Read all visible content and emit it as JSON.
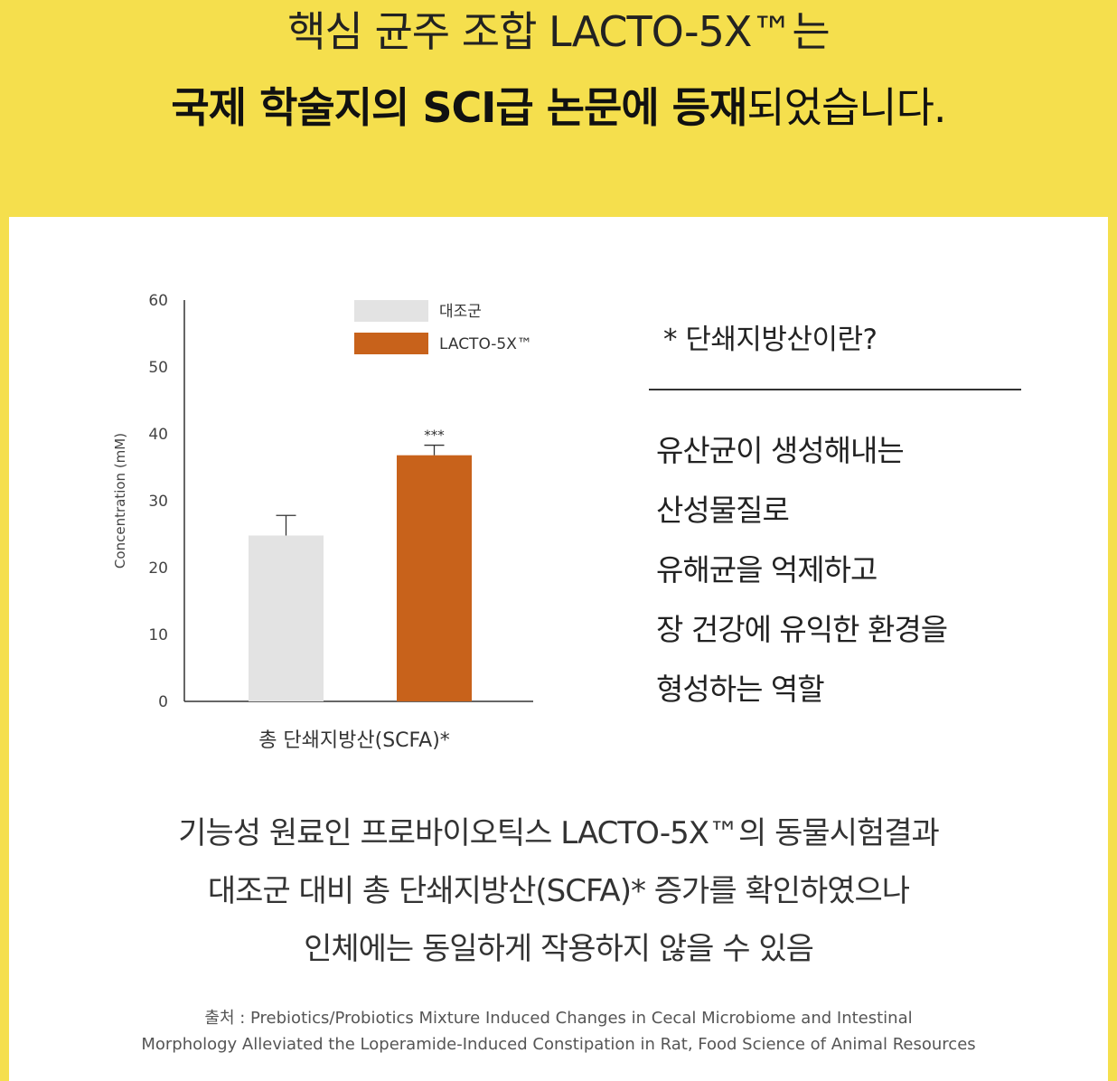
{
  "hero": {
    "line1": "핵심 균주 조합 LACTO-5X™는",
    "line2_bold": "국제 학술지의 SCI급 논문에 등재",
    "line2_rest": "되었습니다."
  },
  "definition": {
    "title": "* 단쇄지방산이란?",
    "lines": [
      "유산균이 생성해내는",
      "산성물질로",
      "유해균을 억제하고",
      "장 건강에 유익한 환경을",
      "형성하는 역할"
    ]
  },
  "notes": [
    "기능성 원료인 프로바이오틱스 LACTO-5X™의 동물시험결과",
    "대조군 대비 총 단쇄지방산(SCFA)* 증가를 확인하였으나",
    "인체에는 동일하게 작용하지 않을 수 있음"
  ],
  "source": {
    "line1": "출처 : Prebiotics/Probiotics Mixture Induced Changes in Cecal Microbiome and Intestinal",
    "line2": "Morphology Alleviated the Loperamide-Induced Constipation in Rat, Food Science of Animal Resources"
  },
  "chart_data": {
    "type": "bar",
    "ylabel": "Concentration (mM)",
    "xlabel": "총 단쇄지방산(SCFA)*",
    "ylim": [
      0,
      60
    ],
    "yticks": [
      0,
      10,
      20,
      30,
      40,
      50,
      60
    ],
    "grid": false,
    "legend_position": "top-center",
    "series": [
      {
        "name": "대조군",
        "value": 24.8,
        "error": 3.0,
        "color": "#E3E3E3",
        "annotation": ""
      },
      {
        "name": "LACTO-5X™",
        "value": 36.8,
        "error": 1.5,
        "color": "#C8621B",
        "annotation": "***"
      }
    ]
  }
}
